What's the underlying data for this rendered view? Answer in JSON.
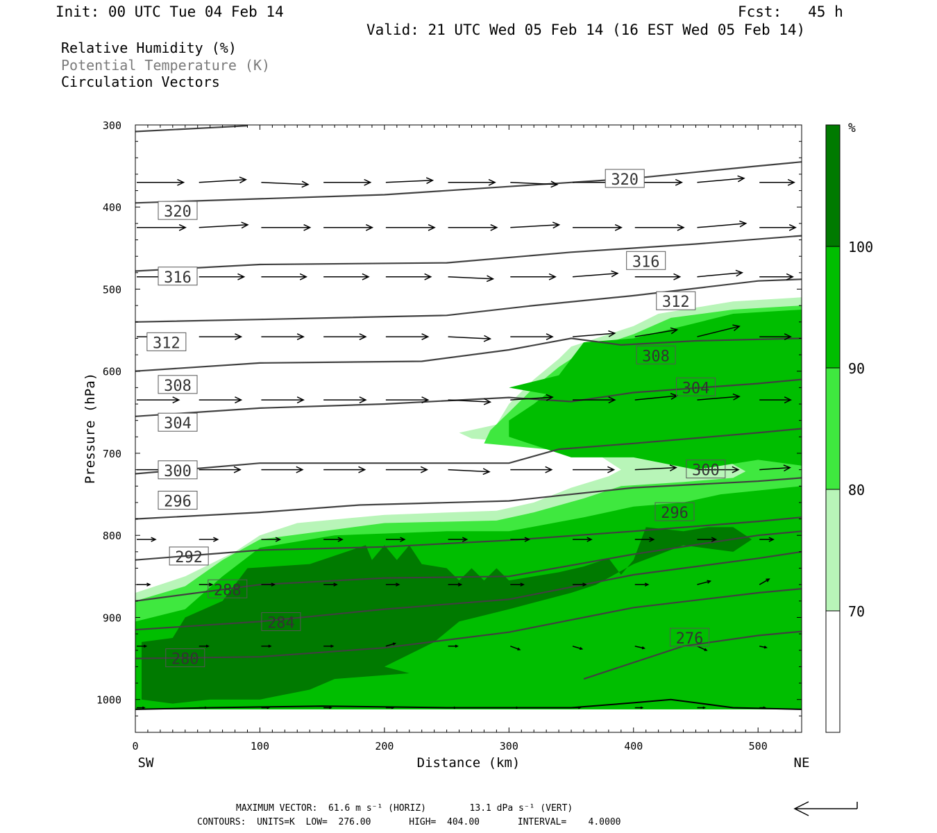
{
  "header": {
    "init": "Init: 00 UTC Tue 04 Feb 14",
    "fcst": "Fcst:   45 h",
    "valid": "Valid: 21 UTC Wed 05 Feb 14 (16 EST Wed 05 Feb 14)"
  },
  "legend": {
    "rh": "Relative Humidity (%)",
    "theta": "Potential Temperature (K)",
    "vectors": "Circulation Vectors"
  },
  "footer": {
    "max_vector": "MAXIMUM VECTOR:  61.6 m s⁻¹ (HORIZ)        13.1 dPa s⁻¹ (VERT)",
    "contours": "CONTOURS:  UNITS=K  LOW=  276.00       HIGH=  404.00       INTERVAL=    4.0000"
  },
  "colors": {
    "rh_70_80": "#b8f5b8",
    "rh_80_90": "#3fe83f",
    "rh_90_100": "#00be00",
    "rh_100": "#007a00",
    "contour": "#404040",
    "arrow": "#000000"
  },
  "chart_data": {
    "type": "heatmap",
    "xlabel": "Distance (km)",
    "ylabel": "Pressure (hPa)",
    "xlim": [
      0,
      535
    ],
    "ylim": [
      1040,
      300
    ],
    "x_ticks": [
      0,
      100,
      200,
      300,
      400,
      500
    ],
    "y_ticks": [
      300,
      400,
      500,
      600,
      700,
      800,
      900,
      1000
    ],
    "x_end_labels": {
      "left": "SW",
      "right": "NE"
    },
    "colorbar": {
      "unit": "%",
      "levels": [
        70,
        80,
        90,
        100
      ]
    },
    "theta_contours": [
      {
        "label": "276",
        "label_at": [
          445,
          925
        ],
        "points": [
          [
            360,
            975
          ],
          [
            440,
            935
          ],
          [
            500,
            922
          ],
          [
            535,
            917
          ]
        ]
      },
      {
        "label": "280",
        "label_at": [
          40,
          950
        ],
        "points": [
          [
            0,
            950
          ],
          [
            100,
            948
          ],
          [
            200,
            937
          ],
          [
            300,
            918
          ],
          [
            400,
            888
          ],
          [
            500,
            870
          ],
          [
            535,
            865
          ]
        ]
      },
      {
        "label": "284",
        "label_at": [
          117,
          906
        ],
        "points": [
          [
            0,
            915
          ],
          [
            100,
            905
          ],
          [
            200,
            890
          ],
          [
            300,
            878
          ],
          [
            400,
            848
          ],
          [
            500,
            828
          ],
          [
            535,
            820
          ]
        ]
      },
      {
        "label": "288",
        "label_at": [
          74,
          866
        ],
        "points": [
          [
            0,
            880
          ],
          [
            100,
            860
          ],
          [
            200,
            852
          ],
          [
            300,
            850
          ],
          [
            400,
            823
          ],
          [
            500,
            800
          ],
          [
            535,
            795
          ]
        ]
      },
      {
        "label": "292",
        "label_at": [
          43,
          826
        ],
        "points": [
          [
            0,
            830
          ],
          [
            100,
            818
          ],
          [
            200,
            814
          ],
          [
            300,
            806
          ],
          [
            400,
            795
          ],
          [
            500,
            783
          ],
          [
            535,
            778
          ]
        ]
      },
      {
        "label": "296",
        "label_at": [
          433,
          772
        ],
        "points": [
          [
            0,
            780
          ],
          [
            100,
            772
          ],
          [
            180,
            763
          ],
          [
            300,
            758
          ],
          [
            400,
            742
          ],
          [
            500,
            734
          ],
          [
            535,
            730
          ]
        ]
      },
      {
        "label": "296",
        "label_at": [
          34,
          758
        ],
        "points": []
      },
      {
        "label": "300",
        "label_at": [
          458,
          720
        ],
        "points": [
          [
            0,
            725
          ],
          [
            100,
            712
          ],
          [
            200,
            712
          ],
          [
            300,
            712
          ],
          [
            340,
            695
          ],
          [
            400,
            688
          ],
          [
            500,
            675
          ],
          [
            535,
            670
          ]
        ]
      },
      {
        "label": "300",
        "label_at": [
          34,
          721
        ],
        "points": []
      },
      {
        "label": "304",
        "label_at": [
          450,
          620
        ],
        "points": [
          [
            0,
            655
          ],
          [
            100,
            645
          ],
          [
            200,
            640
          ],
          [
            300,
            632
          ],
          [
            350,
            637
          ],
          [
            400,
            626
          ],
          [
            500,
            615
          ],
          [
            535,
            610
          ]
        ]
      },
      {
        "label": "304",
        "label_at": [
          34,
          663
        ],
        "points": []
      },
      {
        "label": "308",
        "label_at": [
          418,
          581
        ],
        "points": [
          [
            0,
            600
          ],
          [
            100,
            590
          ],
          [
            230,
            588
          ],
          [
            300,
            574
          ],
          [
            350,
            560
          ],
          [
            390,
            568
          ],
          [
            450,
            563
          ],
          [
            535,
            560
          ]
        ]
      },
      {
        "label": "308",
        "label_at": [
          34,
          617
        ],
        "points": []
      },
      {
        "label": "312",
        "label_at": [
          434,
          515
        ],
        "points": [
          [
            0,
            540
          ],
          [
            100,
            537
          ],
          [
            250,
            532
          ],
          [
            320,
            520
          ],
          [
            400,
            508
          ],
          [
            500,
            490
          ],
          [
            535,
            488
          ]
        ]
      },
      {
        "label": "312",
        "label_at": [
          25,
          565
        ],
        "points": []
      },
      {
        "label": "316",
        "label_at": [
          410,
          466
        ],
        "points": [
          [
            0,
            478
          ],
          [
            100,
            470
          ],
          [
            250,
            468
          ],
          [
            350,
            455
          ],
          [
            450,
            445
          ],
          [
            535,
            435
          ]
        ]
      },
      {
        "label": "316",
        "label_at": [
          34,
          485
        ],
        "points": []
      },
      {
        "label": "320",
        "label_at": [
          34,
          405
        ],
        "points": [
          [
            0,
            395
          ],
          [
            100,
            390
          ],
          [
            200,
            385
          ],
          [
            300,
            375
          ],
          [
            400,
            365
          ],
          [
            500,
            350
          ],
          [
            535,
            345
          ]
        ]
      },
      {
        "label": "320",
        "label_at": [
          393,
          366
        ],
        "points": []
      },
      {
        "label": "",
        "label_at": null,
        "points": [
          [
            0,
            308
          ],
          [
            90,
            301
          ]
        ]
      }
    ]
  }
}
